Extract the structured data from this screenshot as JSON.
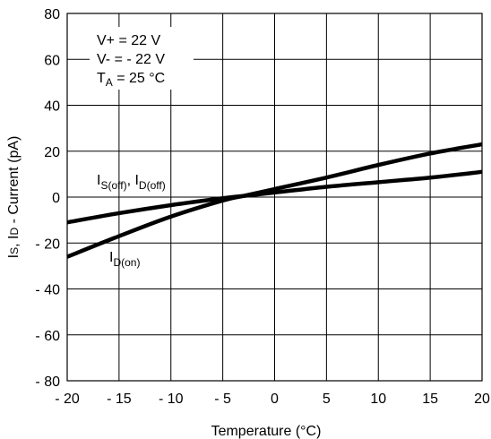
{
  "chart_data": {
    "type": "line",
    "xlabel": "Temperature (°C)",
    "ylabel_parts": {
      "a": "I",
      "a_sub": "S",
      "sep": ", I",
      "b_sub": "D",
      "rest": " - Current (pA)"
    },
    "xlim": [
      -20,
      20
    ],
    "ylim": [
      -80,
      80
    ],
    "x_ticks": [
      -20,
      -15,
      -10,
      -5,
      0,
      5,
      10,
      15,
      20
    ],
    "y_ticks": [
      80,
      60,
      40,
      20,
      0,
      -20,
      -40,
      -60,
      -80
    ],
    "x_tick_labels": [
      "- 20",
      "- 15",
      "- 10",
      "- 5",
      "0",
      "5",
      "10",
      "15",
      "20"
    ],
    "y_tick_labels": [
      "80",
      "60",
      "40",
      "20",
      "0",
      "- 20",
      "- 40",
      "- 60",
      "- 80"
    ],
    "grid": true,
    "conditions": {
      "line1": "V+ = 22 V",
      "line2": "V- = - 22 V",
      "line3_main": "T",
      "line3_sub": "A",
      "line3_rest": " = 25 °C"
    },
    "series": [
      {
        "label_main": "I",
        "label_sub1": "S(off)",
        "label_mid": ", I",
        "label_sub2": "D(off)",
        "x": [
          -20,
          -15,
          -10,
          -5,
          -3,
          0,
          5,
          10,
          15,
          20
        ],
        "y": [
          -11,
          -7,
          -3.5,
          -0.5,
          0.5,
          2,
          4.5,
          6.5,
          8.5,
          11
        ]
      },
      {
        "label_main": "I",
        "label_sub1": "D(on)",
        "x": [
          -20,
          -15,
          -10,
          -5,
          -3,
          0,
          5,
          10,
          15,
          20
        ],
        "y": [
          -26,
          -17,
          -8.5,
          -1.5,
          0.5,
          3.5,
          8.5,
          14,
          19,
          23
        ]
      }
    ]
  }
}
